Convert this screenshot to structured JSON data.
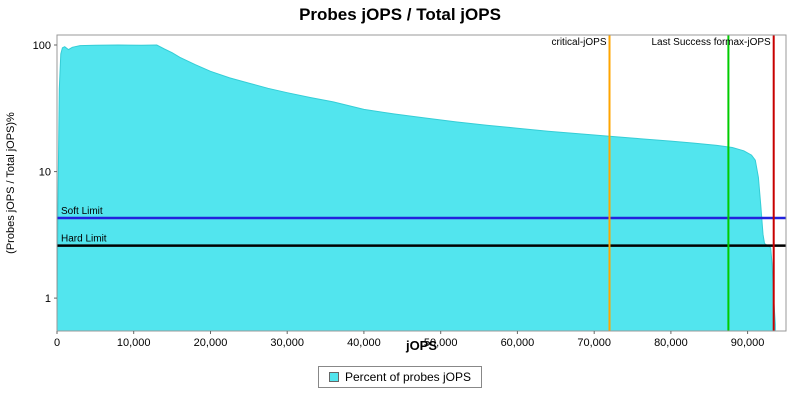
{
  "chart_data": {
    "type": "area",
    "title": "Probes jOPS / Total jOPS",
    "xlabel": "jOPS",
    "ylabel": "(Probes jOPS / Total jOPS)%",
    "y_scale": "log",
    "xlim": [
      0,
      95000
    ],
    "ylim": [
      0.55,
      120
    ],
    "x_ticks": [
      0,
      10000,
      20000,
      30000,
      40000,
      50000,
      60000,
      70000,
      80000,
      90000
    ],
    "y_ticks": [
      1,
      10,
      100
    ],
    "series_color": "#52E5EE",
    "series_stroke": "#35CDD6",
    "legend": {
      "label": "Percent of probes jOPS"
    },
    "points": [
      [
        0,
        0.62
      ],
      [
        150,
        8
      ],
      [
        300,
        45
      ],
      [
        500,
        85
      ],
      [
        700,
        95
      ],
      [
        1000,
        97
      ],
      [
        1500,
        92
      ],
      [
        2000,
        96
      ],
      [
        3000,
        99
      ],
      [
        5000,
        99.5
      ],
      [
        8000,
        100
      ],
      [
        11000,
        99.5
      ],
      [
        13000,
        100
      ],
      [
        14000,
        93
      ],
      [
        15000,
        87
      ],
      [
        16000,
        80
      ],
      [
        18000,
        70
      ],
      [
        20000,
        62
      ],
      [
        22500,
        55
      ],
      [
        25000,
        50
      ],
      [
        27500,
        45.5
      ],
      [
        30000,
        42
      ],
      [
        33000,
        38.5
      ],
      [
        36000,
        35.5
      ],
      [
        40000,
        31
      ],
      [
        44000,
        28.5
      ],
      [
        48000,
        26.5
      ],
      [
        52000,
        24.7
      ],
      [
        56000,
        23.2
      ],
      [
        60000,
        22
      ],
      [
        64000,
        20.8
      ],
      [
        68000,
        19.9
      ],
      [
        72000,
        19
      ],
      [
        76000,
        18.2
      ],
      [
        80000,
        17.4
      ],
      [
        83000,
        16.8
      ],
      [
        86000,
        16.1
      ],
      [
        88000,
        15.5
      ],
      [
        89500,
        14.6
      ],
      [
        90500,
        13.5
      ],
      [
        91000,
        12.3
      ],
      [
        91400,
        9
      ],
      [
        91700,
        5.5
      ],
      [
        92000,
        3.2
      ],
      [
        92200,
        2.7
      ],
      [
        93000,
        2.5
      ],
      [
        93200,
        1.8
      ],
      [
        93400,
        1.0
      ],
      [
        93600,
        0.62
      ]
    ],
    "markers": [
      {
        "label": "critical-jOPS",
        "x": 72000,
        "color": "#FFA500"
      },
      {
        "label": "Last Success for",
        "x": 87500,
        "color": "#00CC00"
      },
      {
        "label": "max-jOPS",
        "x": 93400,
        "color": "#C80000"
      }
    ],
    "limits": [
      {
        "label": "Soft Limit",
        "y": 4.3,
        "color": "#2222DD"
      },
      {
        "label": "Hard Limit",
        "y": 2.6,
        "color": "#000000"
      }
    ]
  }
}
